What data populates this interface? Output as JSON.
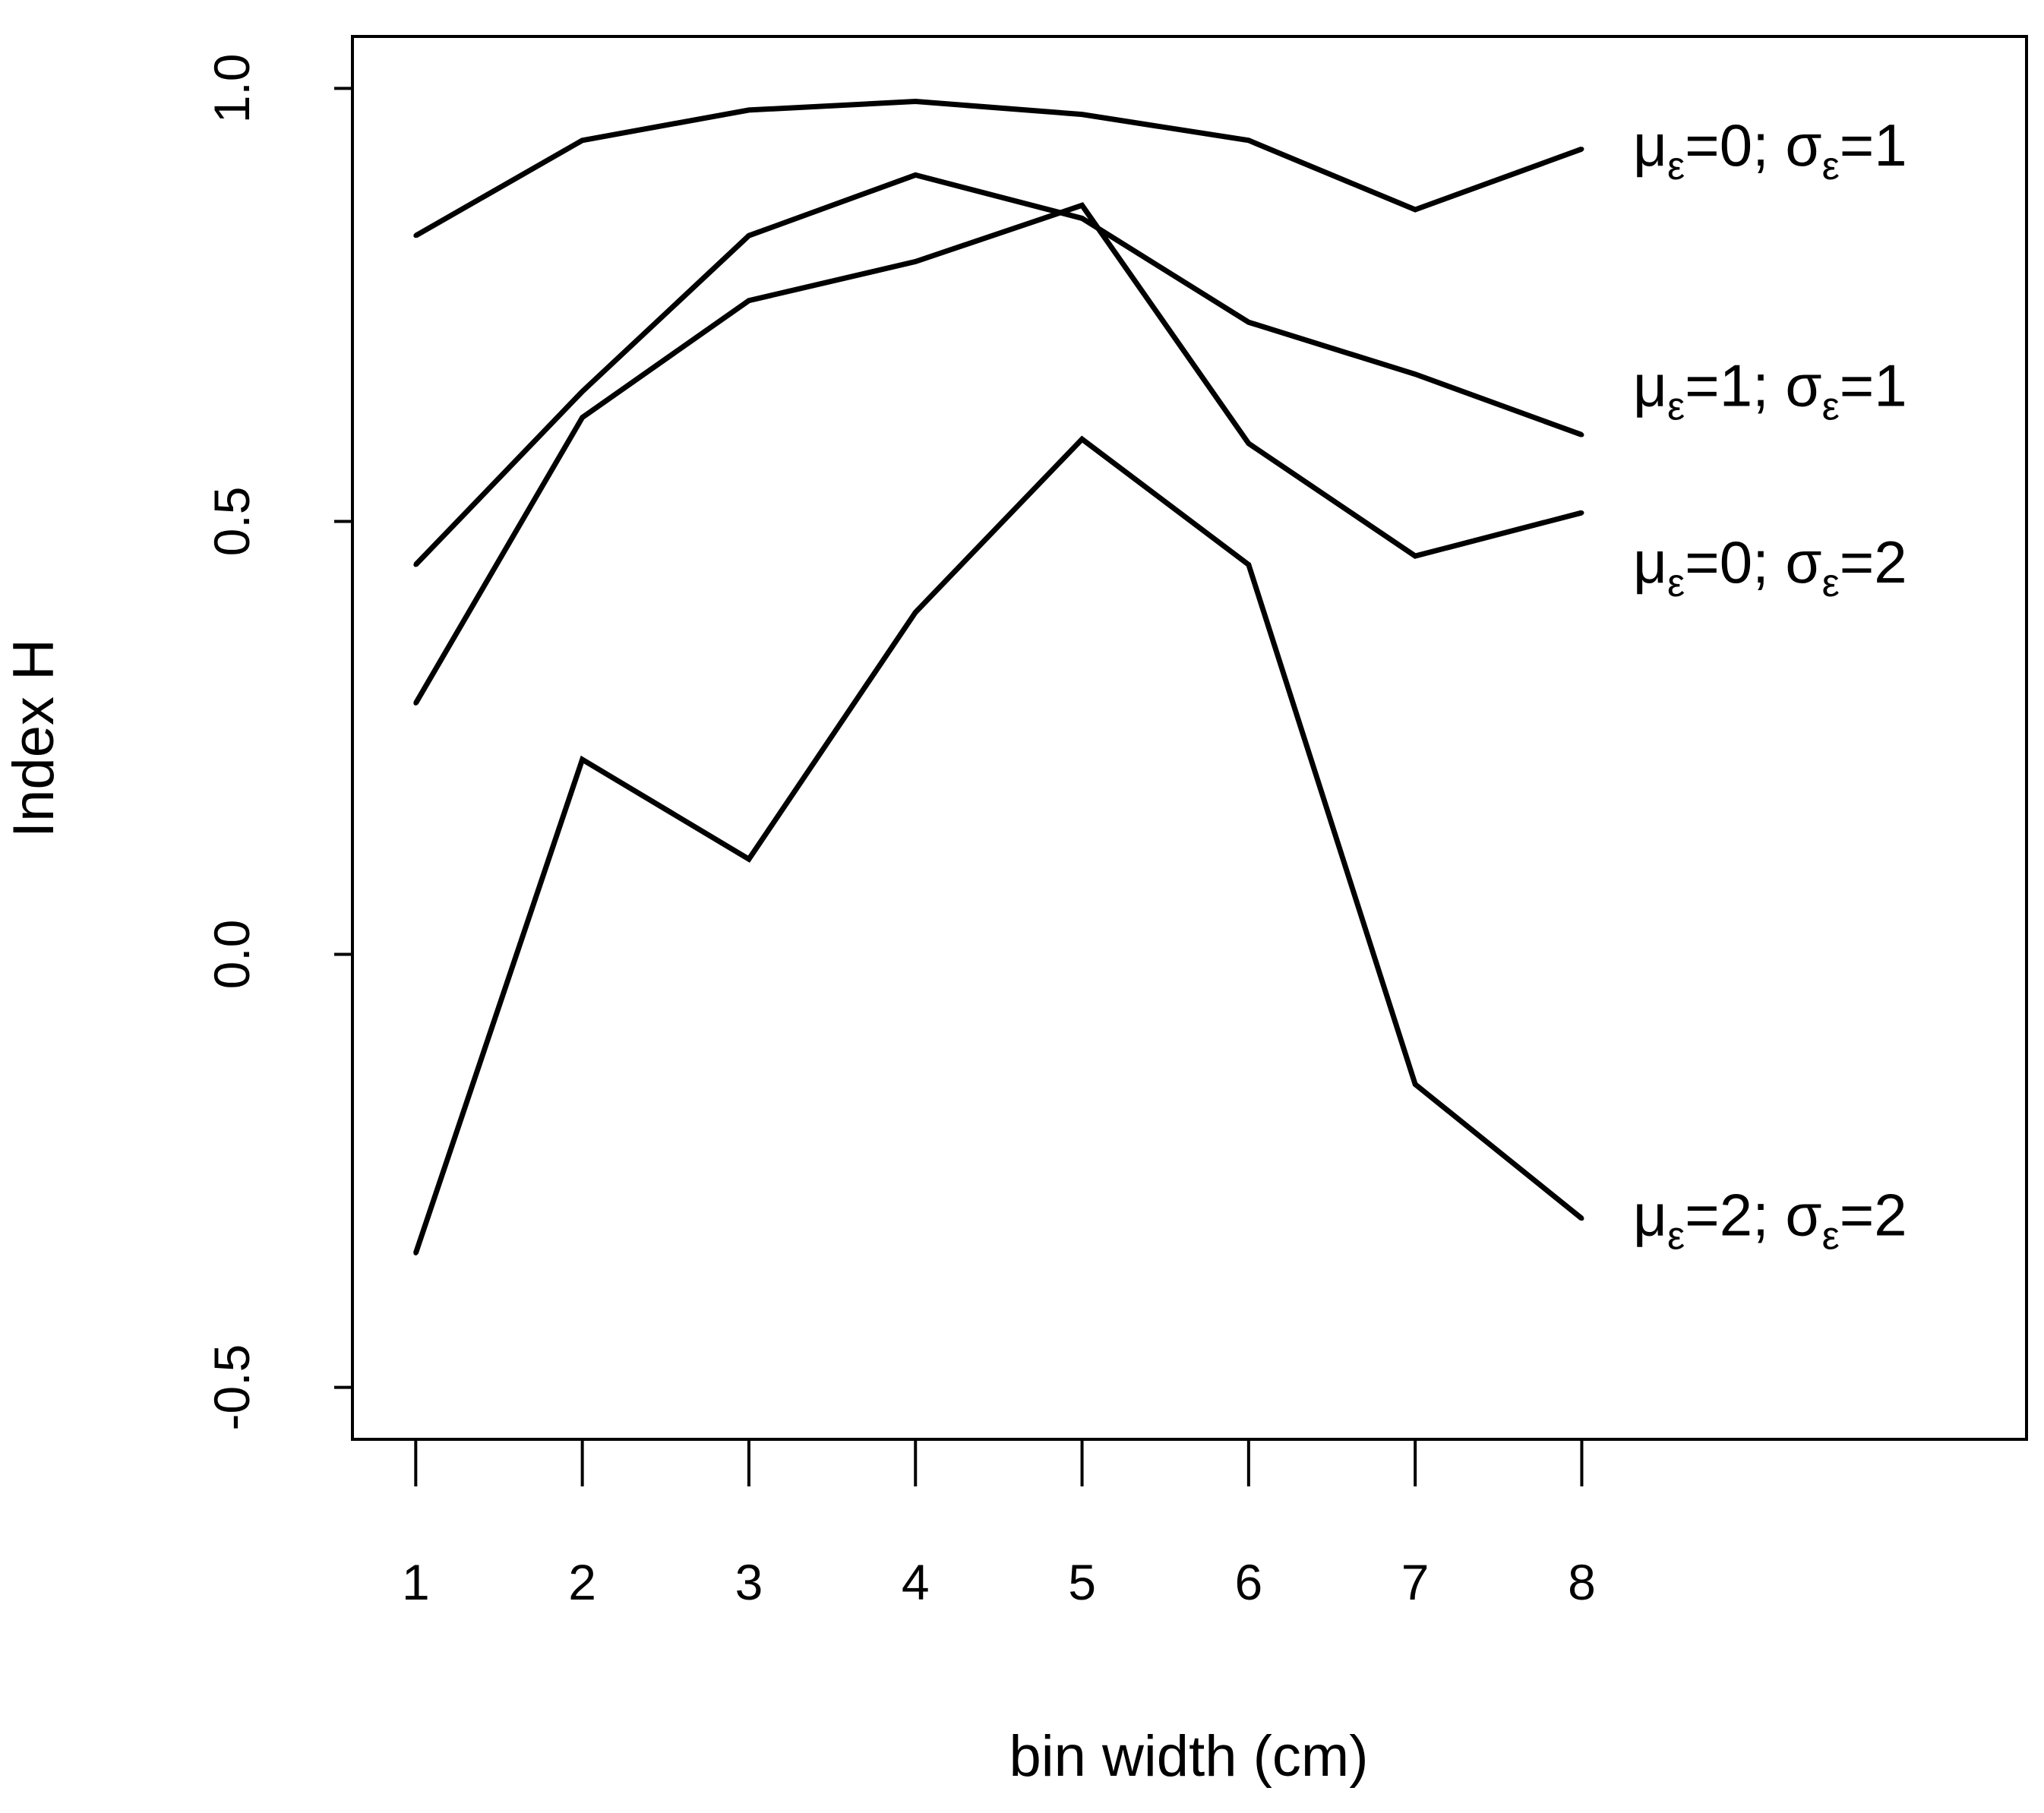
{
  "chart_data": {
    "type": "line",
    "title": "",
    "xlabel": "bin width (cm)",
    "ylabel": "Index H",
    "x": [
      1,
      2,
      3,
      4,
      5,
      6,
      7,
      8
    ],
    "xlim": [
      0.62,
      10.67
    ],
    "ylim": [
      -0.56,
      1.06
    ],
    "x_ticks": [
      1,
      2,
      3,
      4,
      5,
      6,
      7,
      8
    ],
    "x_tick_labels": [
      "1",
      "2",
      "3",
      "4",
      "5",
      "6",
      "7",
      "8"
    ],
    "y_ticks": [
      -0.5,
      0.0,
      0.5,
      1.0
    ],
    "y_tick_labels": [
      "-0.5",
      "0.0",
      "0.5",
      "1.0"
    ],
    "grid": false,
    "legend": "none",
    "line_color": "#000000",
    "series": [
      {
        "label_parts": [
          "μ",
          "ε",
          "=0; σ",
          "ε",
          "=1"
        ],
        "values": [
          0.83,
          0.94,
          0.975,
          0.985,
          0.97,
          0.94,
          0.86,
          0.93
        ]
      },
      {
        "label_parts": [
          "μ",
          "ε",
          "=1; σ",
          "ε",
          "=1"
        ],
        "values": [
          0.45,
          0.65,
          0.83,
          0.9,
          0.85,
          0.73,
          0.67,
          0.6
        ]
      },
      {
        "label_parts": [
          "μ",
          "ε",
          "=0; σ",
          "ε",
          "=2"
        ],
        "values": [
          0.29,
          0.62,
          0.755,
          0.8,
          0.865,
          0.59,
          0.46,
          0.51
        ]
      },
      {
        "label_parts": [
          "μ",
          "ε",
          "=2; σ",
          "ε",
          "=2"
        ],
        "values": [
          -0.345,
          0.225,
          0.11,
          0.395,
          0.595,
          0.45,
          -0.15,
          -0.305
        ]
      }
    ]
  }
}
